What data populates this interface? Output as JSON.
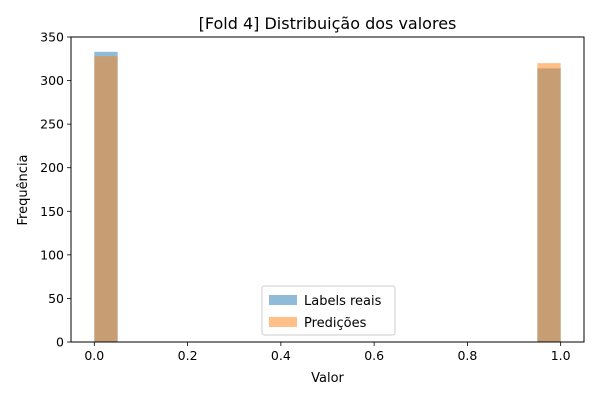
{
  "chart_data": {
    "type": "bar",
    "title": "[Fold 4] Distribuição dos valores",
    "xlabel": "Valor",
    "ylabel": "Frequência",
    "xlim": [
      -0.05,
      1.05
    ],
    "ylim": [
      0,
      350
    ],
    "x_ticks": [
      0.0,
      0.2,
      0.4,
      0.6,
      0.8,
      1.0
    ],
    "x_tick_labels": [
      "0.0",
      "0.2",
      "0.4",
      "0.6",
      "0.8",
      "1.0"
    ],
    "y_ticks": [
      0,
      50,
      100,
      150,
      200,
      250,
      300,
      350
    ],
    "y_tick_labels": [
      "0",
      "50",
      "100",
      "150",
      "200",
      "250",
      "300",
      "350"
    ],
    "bin_width": 0.05,
    "grid": false,
    "legend_position": "lower center",
    "overlap_color": "#c59a73",
    "series": [
      {
        "name": "Labels reais",
        "color": "#1f77b4",
        "alpha": 0.5,
        "bins": [
          {
            "x0": 0.0,
            "x1": 0.05,
            "count": 333
          },
          {
            "x0": 0.95,
            "x1": 1.0,
            "count": 314
          }
        ]
      },
      {
        "name": "Predições",
        "color": "#ff7f0e",
        "alpha": 0.5,
        "bins": [
          {
            "x0": 0.0,
            "x1": 0.05,
            "count": 328
          },
          {
            "x0": 0.95,
            "x1": 1.0,
            "count": 320
          }
        ]
      }
    ]
  }
}
